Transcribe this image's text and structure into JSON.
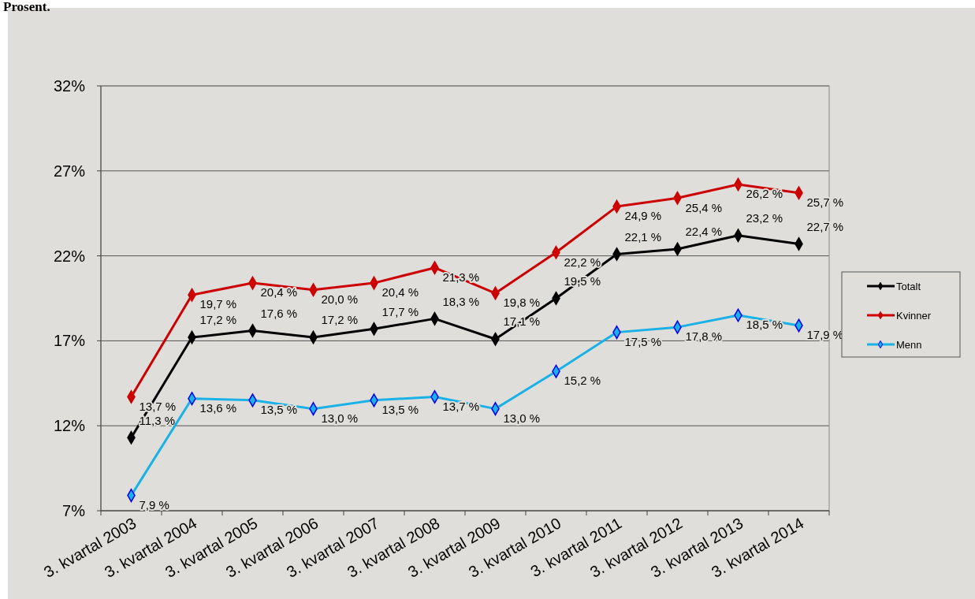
{
  "chart_data": {
    "type": "line",
    "title": "Prosent.",
    "categories": [
      "3. kvartal 2003",
      "3. kvartal 2004",
      "3. kvartal 2005",
      "3. kvartal 2006",
      "3. kvartal 2007",
      "3. kvartal 2008",
      "3. kvartal 2009",
      "3. kvartal 2010",
      "3. kvartal 2011",
      "3. kvartal 2012",
      "3. kvartal 2013",
      "3. kvartal 2014"
    ],
    "series": [
      {
        "name": "Totalt",
        "color": "#000000",
        "values": [
          11.3,
          17.2,
          17.6,
          17.2,
          17.7,
          18.3,
          17.1,
          19.5,
          22.1,
          22.4,
          23.2,
          22.7
        ],
        "value_labels": [
          "11,3 %",
          "17,2 %",
          "17,6 %",
          "17,2 %",
          "17,7 %",
          "18,3 %",
          "17,1 %",
          "19,5 %",
          "22,1 %",
          "22,4 %",
          "23,2 %",
          "22,7 %"
        ]
      },
      {
        "name": "Kvinner",
        "color": "#cc0000",
        "values": [
          13.7,
          19.7,
          20.4,
          20.0,
          20.4,
          21.3,
          19.8,
          22.2,
          24.9,
          25.4,
          26.2,
          25.7
        ],
        "value_labels": [
          "13,7 %",
          "19,7 %",
          "20,4 %",
          "20,0 %",
          "20,4 %",
          "21,3 %",
          "19,8 %",
          "22,2 %",
          "24,9 %",
          "25,4 %",
          "26,2 %",
          "25,7 %"
        ]
      },
      {
        "name": "Menn",
        "color": "#1ab2e6",
        "values": [
          7.9,
          13.6,
          13.5,
          13.0,
          13.5,
          13.7,
          13.0,
          15.2,
          17.5,
          17.8,
          18.5,
          17.9
        ],
        "value_labels": [
          "7,9 %",
          "13,6 %",
          "13,5 %",
          "13,0 %",
          "13,5 %",
          "13,7 %",
          "13,0 %",
          "15,2 %",
          "17,5 %",
          "17,8 %",
          "18,5 %",
          "17,9 %"
        ]
      }
    ],
    "ylim": [
      7,
      32
    ],
    "yticks": [
      {
        "value": 7,
        "label": "7%"
      },
      {
        "value": 12,
        "label": "12%"
      },
      {
        "value": 17,
        "label": "17%"
      },
      {
        "value": 22,
        "label": "22%"
      },
      {
        "value": 27,
        "label": "27%"
      },
      {
        "value": 32,
        "label": "32%"
      }
    ],
    "grid": "y",
    "legend": "right",
    "marker": "diamond",
    "line_style": "solid"
  }
}
